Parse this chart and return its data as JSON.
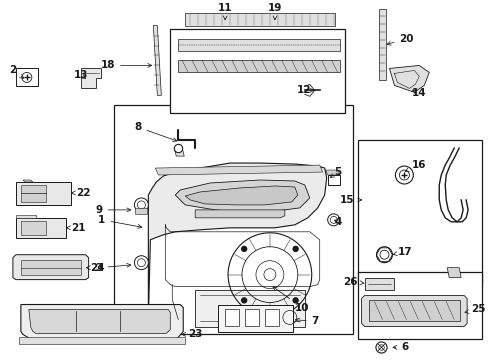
{
  "bg_color": "#ffffff",
  "line_color": "#1a1a1a",
  "fig_width": 4.89,
  "fig_height": 3.6,
  "dpi": 100
}
